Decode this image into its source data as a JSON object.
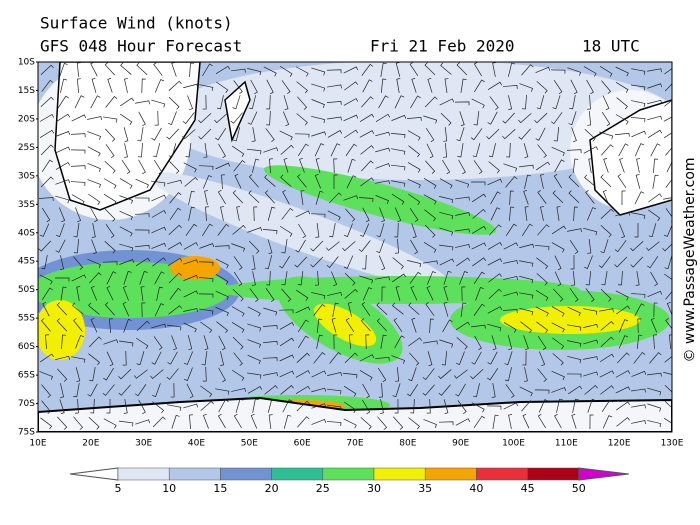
{
  "header": {
    "title": "Surface Wind (knots)",
    "subtitle": "GFS 048 Hour Forecast",
    "date": "Fri 21 Feb 2020",
    "time": "18 UTC"
  },
  "map": {
    "latitudes": [
      "10S",
      "15S",
      "20S",
      "25S",
      "30S",
      "35S",
      "40S",
      "45S",
      "50S",
      "55S",
      "60S",
      "65S",
      "70S",
      "75S"
    ],
    "longitudes": [
      "10E",
      "20E",
      "30E",
      "40E",
      "50E",
      "60E",
      "70E",
      "80E",
      "90E",
      "100E",
      "110E",
      "120E",
      "130E"
    ]
  },
  "colorbar": {
    "labels": [
      5,
      10,
      15,
      20,
      25,
      30,
      35,
      40,
      45,
      50
    ],
    "colors": [
      "#ffffff",
      "#dfe7f4",
      "#b3c7e8",
      "#7193d3",
      "#2fbf95",
      "#5de05a",
      "#f2f000",
      "#f5a500",
      "#e8303a",
      "#ad0016",
      "#d000d0"
    ]
  },
  "credit": "© www.PassageWeather.com"
}
